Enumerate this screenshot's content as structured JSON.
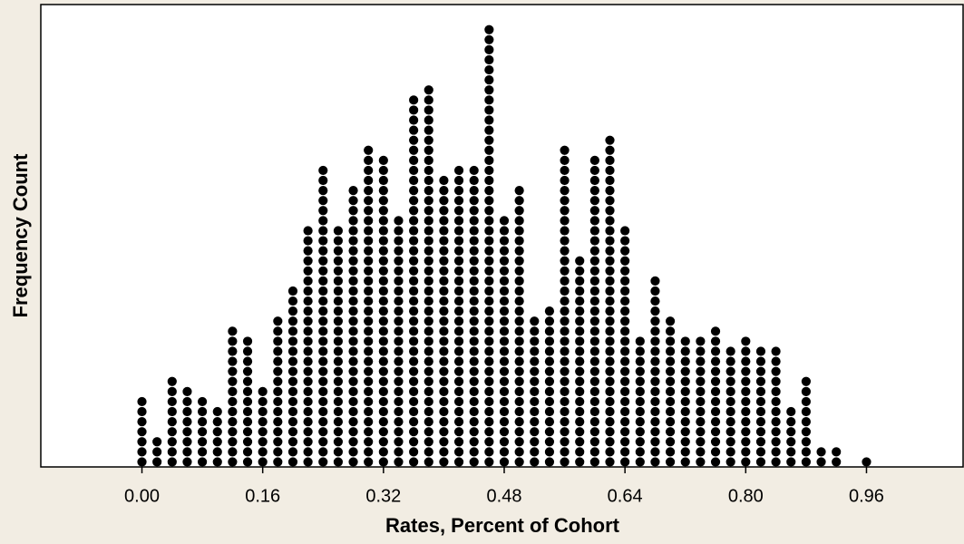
{
  "chart_data": {
    "type": "dotplot",
    "x_label": "Rates, Percent of Cohort",
    "y_label": "Frequency Count",
    "x": [
      0.0,
      0.02,
      0.04,
      0.06,
      0.08,
      0.1,
      0.12,
      0.14,
      0.16,
      0.18,
      0.2,
      0.22,
      0.24,
      0.26,
      0.28,
      0.3,
      0.32,
      0.34,
      0.36,
      0.38,
      0.4,
      0.42,
      0.44,
      0.46,
      0.48,
      0.5,
      0.52,
      0.54,
      0.56,
      0.58,
      0.6,
      0.62,
      0.64,
      0.66,
      0.68,
      0.7,
      0.72,
      0.74,
      0.76,
      0.78,
      0.8,
      0.82,
      0.84,
      0.86,
      0.88,
      0.9,
      0.92,
      0.96
    ],
    "values": [
      7,
      3,
      9,
      8,
      7,
      6,
      14,
      13,
      8,
      15,
      18,
      24,
      30,
      24,
      28,
      32,
      31,
      25,
      37,
      38,
      29,
      30,
      30,
      44,
      25,
      28,
      15,
      16,
      32,
      21,
      31,
      33,
      24,
      13,
      19,
      15,
      13,
      13,
      14,
      12,
      13,
      12,
      12,
      6,
      9,
      2,
      2,
      1
    ],
    "color": "#000000",
    "xlim": [
      -0.134,
      1.088
    ],
    "ylim": [
      0,
      46
    ],
    "xticks": [
      {
        "value": 0,
        "label": "0.00"
      },
      {
        "value": 0.16,
        "label": "0.16"
      },
      {
        "value": 0.32,
        "label": "0.32"
      },
      {
        "value": 0.48,
        "label": "0.48"
      },
      {
        "value": 0.64,
        "label": "0.64"
      },
      {
        "value": 0.8,
        "label": "0.80"
      },
      {
        "value": 0.96,
        "label": "0.96"
      }
    ]
  }
}
